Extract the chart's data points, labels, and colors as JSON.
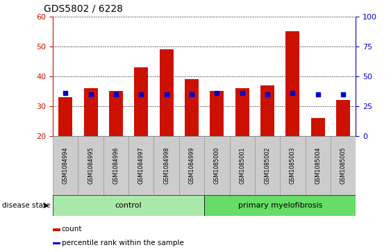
{
  "title": "GDS5802 / 6228",
  "samples": [
    "GSM1084994",
    "GSM1084995",
    "GSM1084996",
    "GSM1084997",
    "GSM1084998",
    "GSM1084999",
    "GSM1085000",
    "GSM1085001",
    "GSM1085002",
    "GSM1085003",
    "GSM1085004",
    "GSM1085005"
  ],
  "counts": [
    33,
    36,
    35,
    43,
    49,
    39,
    35,
    36,
    37,
    55,
    26,
    32
  ],
  "percentiles": [
    36,
    35,
    35,
    35,
    35,
    35,
    36,
    36,
    35,
    36,
    35,
    35
  ],
  "control_n": 6,
  "primary_n": 6,
  "ymin": 20,
  "ymax": 60,
  "yticks_left": [
    20,
    30,
    40,
    50,
    60
  ],
  "yticks_right": [
    0,
    25,
    50,
    75,
    100
  ],
  "bar_color": "#cc1100",
  "dot_color": "#0000cc",
  "control_color": "#aae8aa",
  "primary_color": "#66dd66",
  "control_label": "control",
  "primary_label": "primary myelofibrosis",
  "disease_state_label": "disease state",
  "legend_count": "count",
  "legend_pct": "percentile rank within the sample",
  "title_color": "#000000",
  "left_tick_color": "#cc1100",
  "right_tick_color": "#0000cc",
  "bar_width": 0.55,
  "label_bg_color": "#cccccc",
  "label_border_color": "#999999"
}
